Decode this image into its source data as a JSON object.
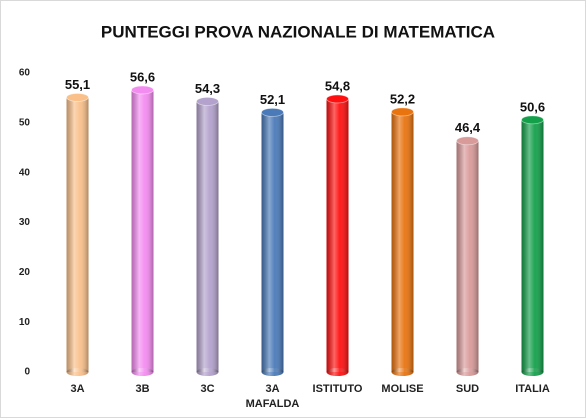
{
  "chart_data": {
    "type": "bar",
    "title": "PUNTEGGI PROVA NAZIONALE DI MATEMATICA",
    "categories": [
      "3A",
      "3B",
      "3C",
      "3A\nMAFALDA",
      "ISTITUTO",
      "MOLISE",
      "SUD",
      "ITALIA"
    ],
    "values": [
      55.1,
      56.6,
      54.3,
      52.1,
      54.8,
      52.2,
      46.4,
      50.6
    ],
    "value_labels": [
      "55,1",
      "56,6",
      "54,3",
      "52,1",
      "54,8",
      "52,2",
      "46,4",
      "50,6"
    ],
    "colors": [
      "#f9c08a",
      "#f38cf0",
      "#b3a2cc",
      "#4a7ab8",
      "#ff1010",
      "#e8730f",
      "#d99a9a",
      "#14a04a"
    ],
    "ylim": [
      0,
      60
    ],
    "yticks": [
      0,
      10,
      20,
      30,
      40,
      50,
      60
    ],
    "grid": false
  }
}
